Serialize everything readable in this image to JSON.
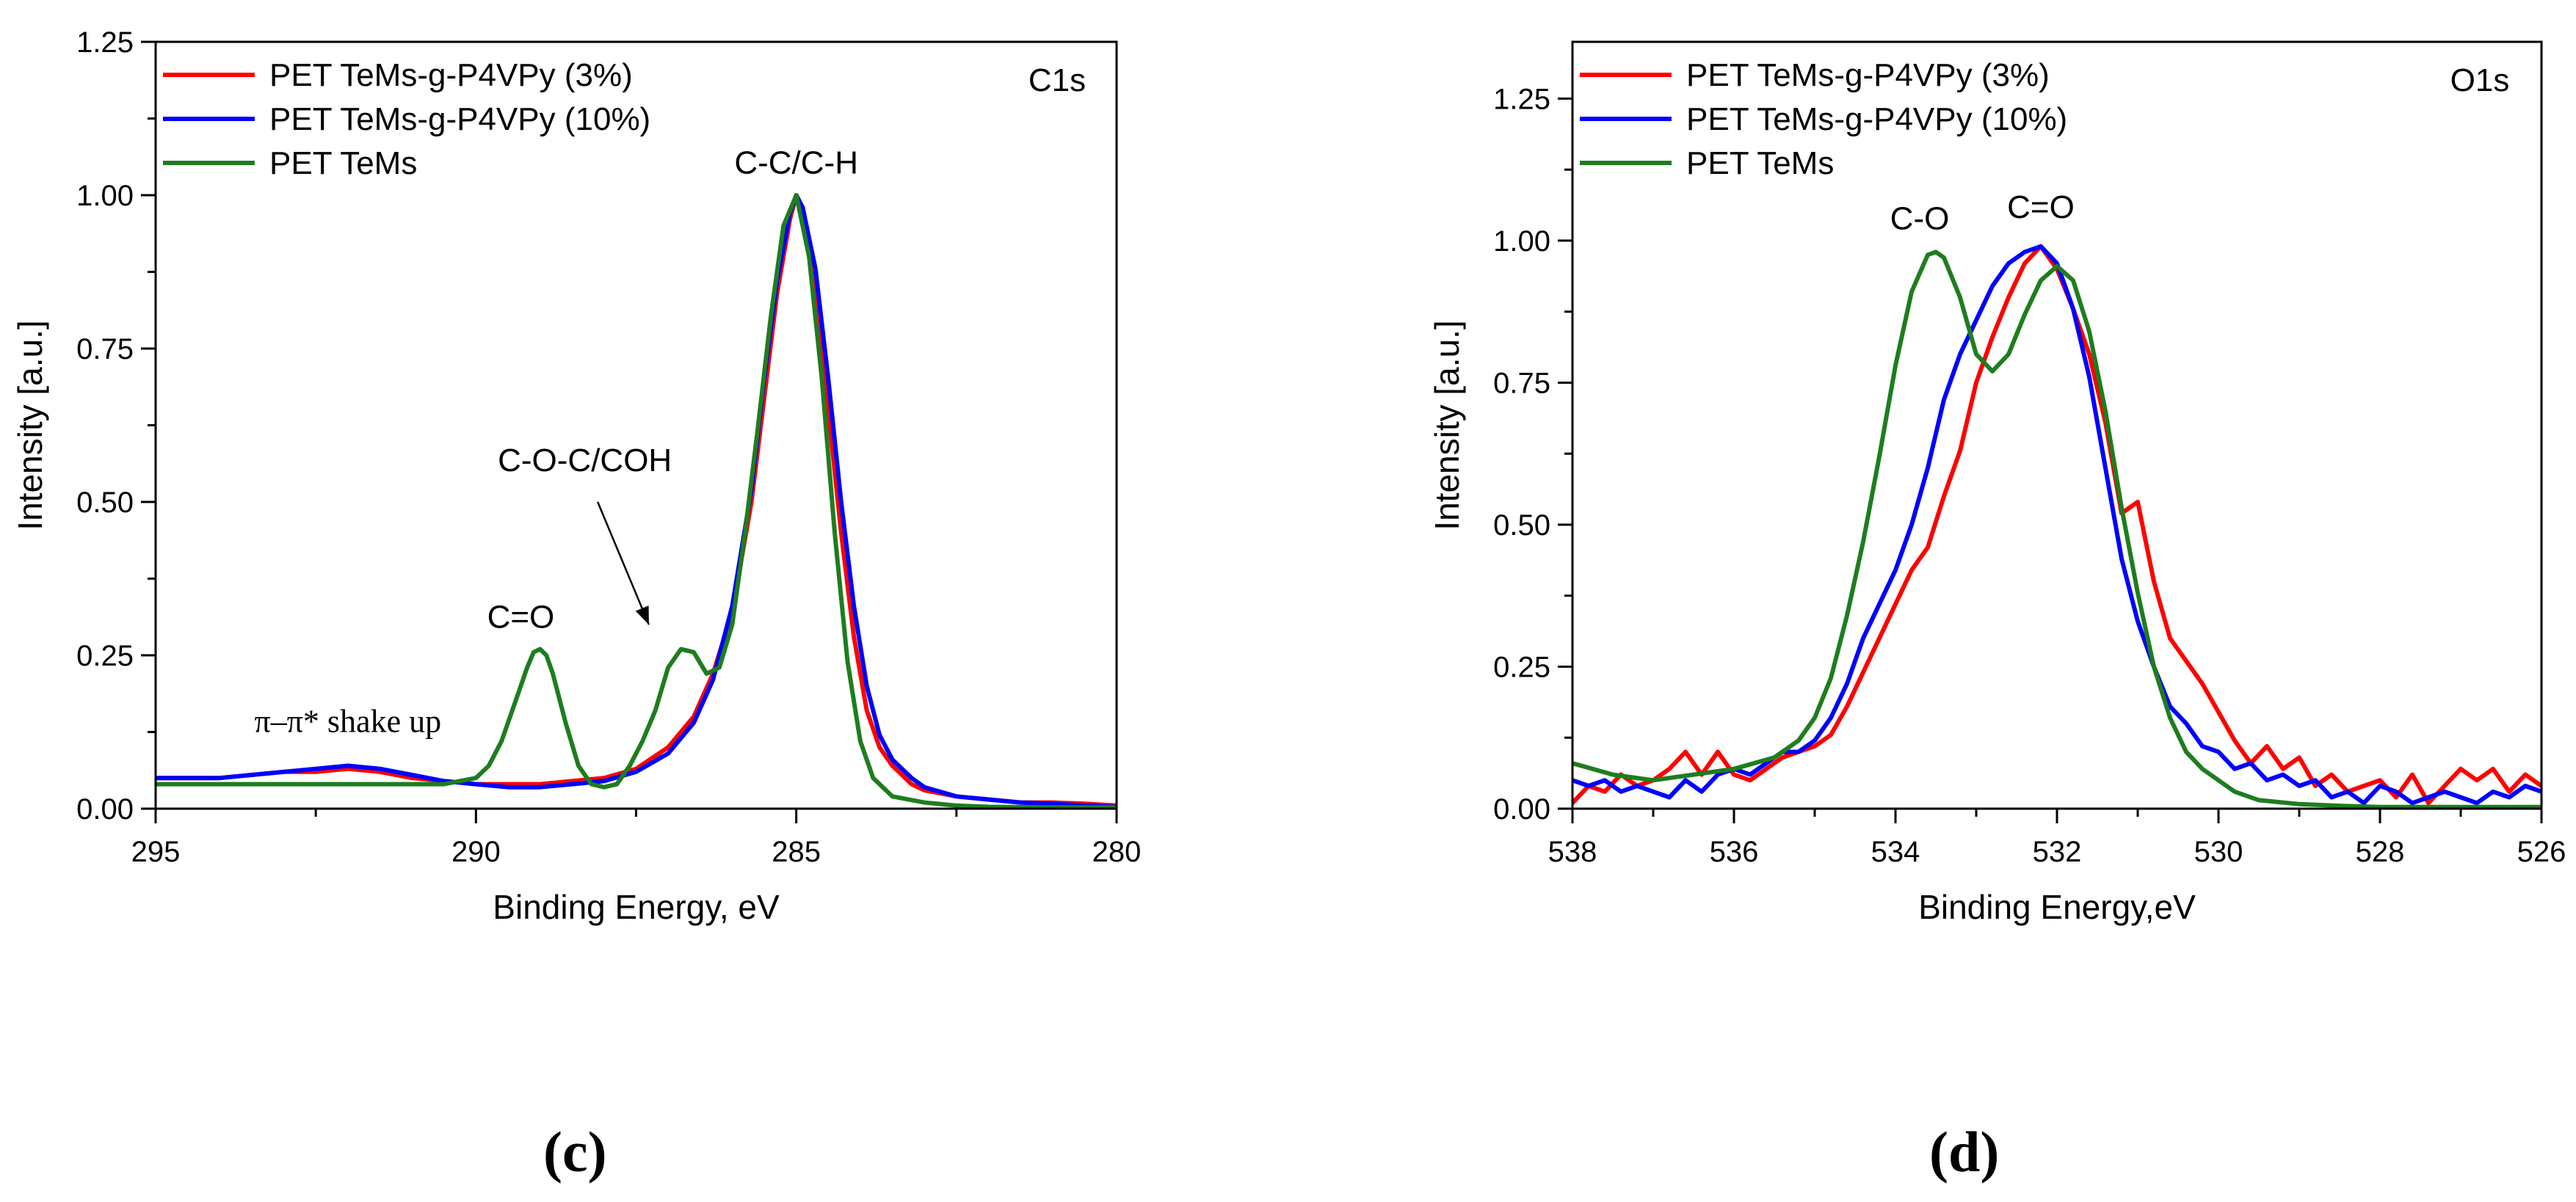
{
  "figure": {
    "panel_c_label": "(c)",
    "panel_d_label": "(d)"
  },
  "chart_data": [
    {
      "type": "line",
      "panel": "(c)",
      "annotation_title": "C1s",
      "xlabel": "Binding Energy, eV",
      "ylabel": "Intensity [a.u.]",
      "xlim": [
        295,
        280
      ],
      "ylim": [
        0,
        1.25
      ],
      "xticks": [
        295,
        290,
        285,
        280
      ],
      "xtick_labels": [
        "295",
        "290",
        "285",
        "280"
      ],
      "yticks": [
        0,
        0.25,
        0.5,
        0.75,
        1.0,
        1.25
      ],
      "ytick_labels": [
        "0.00",
        "0.25",
        "0.50",
        "0.75",
        "1.00",
        "1.25"
      ],
      "legend_position": "top-left",
      "annotations": [
        {
          "text": "C-C/C-H",
          "x": 285.0,
          "y": 1.035
        },
        {
          "text": "C-O-C/COH",
          "x": 288.3,
          "y": 0.55
        },
        {
          "text": "C=O",
          "x": 289.3,
          "y": 0.295
        },
        {
          "text": "π–π* shake up",
          "x": 292.0,
          "y": 0.125
        }
      ],
      "arrow": {
        "from": [
          288.1,
          0.5
        ],
        "to": [
          287.3,
          0.3
        ]
      },
      "series": [
        {
          "name": "PET TeMs-g-P4VPy (3%)",
          "color": "#ff0000",
          "x": [
            295,
            294,
            293,
            292.5,
            292,
            291.5,
            291,
            290.5,
            290,
            289.5,
            289,
            288.5,
            288,
            287.5,
            287,
            286.6,
            286.3,
            286,
            285.7,
            285.5,
            285.3,
            285.1,
            285,
            284.9,
            284.7,
            284.5,
            284.3,
            284.1,
            283.9,
            283.7,
            283.5,
            283.2,
            283,
            282.5,
            282,
            281.5,
            281,
            280.5,
            280
          ],
          "y": [
            0.05,
            0.05,
            0.06,
            0.06,
            0.065,
            0.06,
            0.05,
            0.045,
            0.04,
            0.04,
            0.04,
            0.045,
            0.05,
            0.065,
            0.1,
            0.15,
            0.22,
            0.32,
            0.5,
            0.67,
            0.84,
            0.96,
            1.0,
            0.97,
            0.85,
            0.65,
            0.45,
            0.28,
            0.16,
            0.1,
            0.07,
            0.04,
            0.03,
            0.02,
            0.015,
            0.01,
            0.01,
            0.008,
            0.005
          ]
        },
        {
          "name": "PET TeMs-g-P4VPy (10%)",
          "color": "#0000ff",
          "x": [
            295,
            294,
            293,
            292.5,
            292,
            291.5,
            291,
            290.5,
            290,
            289.5,
            289,
            288.5,
            288,
            287.5,
            287,
            286.6,
            286.3,
            286,
            285.7,
            285.5,
            285.3,
            285.1,
            285,
            284.9,
            284.7,
            284.5,
            284.3,
            284.1,
            283.9,
            283.7,
            283.5,
            283.2,
            283,
            282.5,
            282,
            281.5,
            281,
            280.5,
            280
          ],
          "y": [
            0.05,
            0.05,
            0.06,
            0.065,
            0.07,
            0.065,
            0.055,
            0.045,
            0.04,
            0.035,
            0.035,
            0.04,
            0.045,
            0.06,
            0.09,
            0.14,
            0.21,
            0.33,
            0.52,
            0.7,
            0.86,
            0.97,
            1.0,
            0.98,
            0.88,
            0.7,
            0.5,
            0.33,
            0.2,
            0.12,
            0.08,
            0.05,
            0.035,
            0.02,
            0.015,
            0.01,
            0.008,
            0.005,
            0.003
          ]
        },
        {
          "name": "PET TeMs",
          "color": "#1e7d1e",
          "x": [
            295,
            294,
            293,
            292,
            291,
            290.5,
            290,
            289.8,
            289.6,
            289.4,
            289.2,
            289.1,
            289.0,
            288.9,
            288.8,
            288.6,
            288.4,
            288.2,
            288.0,
            287.8,
            287.6,
            287.4,
            287.2,
            287.0,
            286.8,
            286.6,
            286.4,
            286.2,
            286.0,
            285.8,
            285.6,
            285.4,
            285.2,
            285.0,
            284.8,
            284.6,
            284.4,
            284.2,
            284.0,
            283.8,
            283.5,
            283.0,
            282.5,
            282,
            281,
            280
          ],
          "y": [
            0.04,
            0.04,
            0.04,
            0.04,
            0.04,
            0.04,
            0.05,
            0.07,
            0.11,
            0.17,
            0.23,
            0.255,
            0.26,
            0.25,
            0.22,
            0.14,
            0.07,
            0.04,
            0.035,
            0.04,
            0.07,
            0.11,
            0.16,
            0.23,
            0.26,
            0.255,
            0.22,
            0.23,
            0.3,
            0.45,
            0.62,
            0.8,
            0.95,
            1.0,
            0.9,
            0.7,
            0.45,
            0.24,
            0.11,
            0.05,
            0.02,
            0.01,
            0.005,
            0.003,
            0.002,
            0.002
          ]
        }
      ]
    },
    {
      "type": "line",
      "panel": "(d)",
      "annotation_title": "O1s",
      "xlabel": "Binding Energy,eV",
      "ylabel": "Intensity [a.u.]",
      "xlim": [
        538,
        526
      ],
      "ylim": [
        0,
        1.35
      ],
      "xticks": [
        538,
        536,
        534,
        532,
        530,
        528,
        526
      ],
      "xtick_labels": [
        "538",
        "536",
        "534",
        "532",
        "530",
        "528",
        "526"
      ],
      "yticks": [
        0,
        0.25,
        0.5,
        0.75,
        1.0,
        1.25
      ],
      "ytick_labels": [
        "0.00",
        "0.25",
        "0.50",
        "0.75",
        "1.00",
        "1.25"
      ],
      "legend_position": "top-left",
      "annotations": [
        {
          "text": "C-O",
          "x": 533.7,
          "y": 1.02
        },
        {
          "text": "C=O",
          "x": 532.2,
          "y": 1.04
        }
      ],
      "series": [
        {
          "name": "PET TeMs-g-P4VPy (3%)",
          "color": "#ff0000",
          "x": [
            538,
            537.8,
            537.6,
            537.4,
            537.2,
            537,
            536.8,
            536.6,
            536.4,
            536.2,
            536,
            535.8,
            535.6,
            535.4,
            535.2,
            535,
            534.8,
            534.6,
            534.4,
            534.2,
            534,
            533.8,
            533.6,
            533.4,
            533.2,
            533,
            532.8,
            532.6,
            532.4,
            532.2,
            532,
            531.8,
            531.6,
            531.4,
            531.2,
            531,
            530.8,
            530.6,
            530.4,
            530.2,
            530,
            529.8,
            529.6,
            529.4,
            529.2,
            529,
            528.8,
            528.6,
            528.4,
            528.2,
            528,
            527.8,
            527.6,
            527.4,
            527.2,
            527,
            526.8,
            526.6,
            526.4,
            526.2,
            526
          ],
          "y": [
            0.01,
            0.04,
            0.03,
            0.06,
            0.04,
            0.05,
            0.07,
            0.1,
            0.06,
            0.1,
            0.06,
            0.05,
            0.07,
            0.09,
            0.1,
            0.11,
            0.13,
            0.18,
            0.24,
            0.3,
            0.36,
            0.42,
            0.46,
            0.55,
            0.63,
            0.75,
            0.83,
            0.9,
            0.96,
            0.99,
            0.95,
            0.88,
            0.8,
            0.68,
            0.52,
            0.54,
            0.4,
            0.3,
            0.26,
            0.22,
            0.17,
            0.12,
            0.08,
            0.11,
            0.07,
            0.09,
            0.04,
            0.06,
            0.03,
            0.04,
            0.05,
            0.02,
            0.06,
            0.01,
            0.04,
            0.07,
            0.05,
            0.07,
            0.03,
            0.06,
            0.04
          ]
        },
        {
          "name": "PET TeMs-g-P4VPy (10%)",
          "color": "#0000ff",
          "x": [
            538,
            537.8,
            537.6,
            537.4,
            537.2,
            537,
            536.8,
            536.6,
            536.4,
            536.2,
            536,
            535.8,
            535.6,
            535.4,
            535.2,
            535,
            534.8,
            534.6,
            534.4,
            534.2,
            534,
            533.8,
            533.6,
            533.4,
            533.2,
            533,
            532.8,
            532.6,
            532.4,
            532.2,
            532,
            531.8,
            531.6,
            531.4,
            531.2,
            531,
            530.8,
            530.6,
            530.4,
            530.2,
            530,
            529.8,
            529.6,
            529.4,
            529.2,
            529,
            528.8,
            528.6,
            528.4,
            528.2,
            528,
            527.8,
            527.6,
            527.4,
            527.2,
            527,
            526.8,
            526.6,
            526.4,
            526.2,
            526
          ],
          "y": [
            0.05,
            0.04,
            0.05,
            0.03,
            0.04,
            0.03,
            0.02,
            0.05,
            0.03,
            0.06,
            0.07,
            0.06,
            0.08,
            0.1,
            0.1,
            0.12,
            0.16,
            0.22,
            0.3,
            0.36,
            0.42,
            0.5,
            0.6,
            0.72,
            0.8,
            0.86,
            0.92,
            0.96,
            0.98,
            0.99,
            0.96,
            0.88,
            0.76,
            0.6,
            0.44,
            0.33,
            0.25,
            0.18,
            0.15,
            0.11,
            0.1,
            0.07,
            0.08,
            0.05,
            0.06,
            0.04,
            0.05,
            0.02,
            0.03,
            0.01,
            0.04,
            0.03,
            0.01,
            0.02,
            0.03,
            0.02,
            0.01,
            0.03,
            0.02,
            0.04,
            0.03
          ]
        },
        {
          "name": "PET TeMs",
          "color": "#1e7d1e",
          "x": [
            538,
            537.5,
            537,
            536.5,
            536,
            535.5,
            535.2,
            535,
            534.8,
            534.6,
            534.4,
            534.2,
            534,
            533.8,
            533.6,
            533.5,
            533.4,
            533.2,
            533,
            532.8,
            532.6,
            532.4,
            532.2,
            532,
            531.8,
            531.6,
            531.4,
            531.2,
            531,
            530.8,
            530.6,
            530.4,
            530.2,
            530,
            529.8,
            529.5,
            529,
            528.5,
            528,
            527,
            526
          ],
          "y": [
            0.08,
            0.06,
            0.05,
            0.06,
            0.07,
            0.09,
            0.12,
            0.16,
            0.23,
            0.34,
            0.47,
            0.62,
            0.78,
            0.91,
            0.975,
            0.98,
            0.97,
            0.9,
            0.8,
            0.77,
            0.8,
            0.87,
            0.93,
            0.955,
            0.93,
            0.84,
            0.7,
            0.53,
            0.38,
            0.25,
            0.16,
            0.1,
            0.07,
            0.05,
            0.03,
            0.015,
            0.008,
            0.005,
            0.003,
            0.003,
            0.003
          ]
        }
      ]
    }
  ]
}
